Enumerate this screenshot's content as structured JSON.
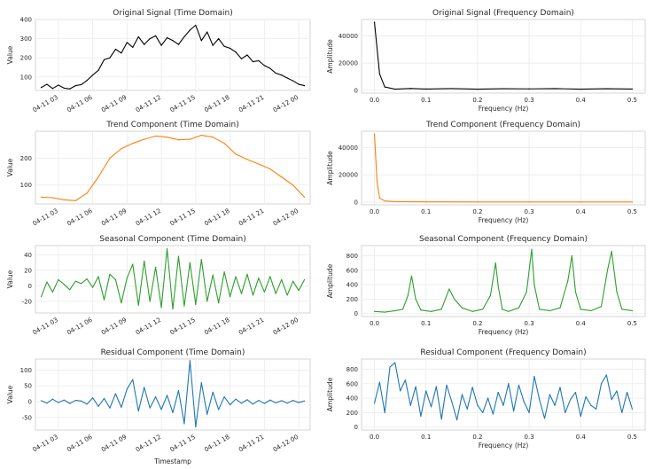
{
  "chart_data": [
    {
      "type": "line",
      "domain": "time",
      "title": "Original Signal (Time Domain)",
      "xlabel": "",
      "ylabel": "Value",
      "color": "#000000",
      "xlim": [
        "2024-04-11 01:00",
        "2024-04-12 01:00"
      ],
      "ylim": [
        30,
        400
      ],
      "x_ticks": [
        "04-11 03",
        "04-11 06",
        "04-11 09",
        "04-11 12",
        "04-11 15",
        "04-11 18",
        "04-11 21",
        "04-12 00"
      ],
      "y_ticks": [
        100,
        200,
        300,
        400
      ],
      "x": [
        "2024-04-11 01:30",
        "2024-04-11 02:00",
        "2024-04-11 02:30",
        "2024-04-11 03:00",
        "2024-04-11 03:30",
        "2024-04-11 04:00",
        "2024-04-11 04:30",
        "2024-04-11 05:00",
        "2024-04-11 05:30",
        "2024-04-11 06:00",
        "2024-04-11 06:30",
        "2024-04-11 07:00",
        "2024-04-11 07:30",
        "2024-04-11 08:00",
        "2024-04-11 08:30",
        "2024-04-11 09:00",
        "2024-04-11 09:30",
        "2024-04-11 10:00",
        "2024-04-11 10:30",
        "2024-04-11 11:00",
        "2024-04-11 11:30",
        "2024-04-11 12:00",
        "2024-04-11 12:30",
        "2024-04-11 13:00",
        "2024-04-11 13:30",
        "2024-04-11 14:00",
        "2024-04-11 14:30",
        "2024-04-11 15:00",
        "2024-04-11 15:30",
        "2024-04-11 16:00",
        "2024-04-11 16:30",
        "2024-04-11 17:00",
        "2024-04-11 17:30",
        "2024-04-11 18:00",
        "2024-04-11 18:30",
        "2024-04-11 19:00",
        "2024-04-11 19:30",
        "2024-04-11 20:00",
        "2024-04-11 20:30",
        "2024-04-11 21:00",
        "2024-04-11 21:30",
        "2024-04-11 22:00",
        "2024-04-11 22:30",
        "2024-04-11 23:00",
        "2024-04-11 23:30",
        "2024-04-12 00:00",
        "2024-04-12 00:30"
      ],
      "values": [
        45,
        62,
        40,
        58,
        42,
        38,
        55,
        60,
        82,
        110,
        135,
        190,
        200,
        245,
        225,
        280,
        255,
        310,
        270,
        300,
        315,
        265,
        305,
        290,
        270,
        310,
        345,
        370,
        290,
        335,
        265,
        300,
        260,
        250,
        230,
        195,
        215,
        180,
        185,
        160,
        145,
        120,
        110,
        95,
        80,
        62,
        55
      ]
    },
    {
      "type": "line",
      "domain": "frequency",
      "title": "Original Signal (Frequency Domain)",
      "xlabel": "Frequency (Hz)",
      "ylabel": "Amplitude",
      "color": "#000000",
      "xlim": [
        -0.025,
        0.525
      ],
      "ylim": [
        -2000,
        52000
      ],
      "x_ticks": [
        0.0,
        0.1,
        0.2,
        0.3,
        0.4,
        0.5
      ],
      "y_ticks": [
        0,
        20000,
        40000
      ],
      "x": [
        0.0,
        0.01,
        0.02,
        0.04,
        0.07,
        0.1,
        0.15,
        0.2,
        0.25,
        0.3,
        0.35,
        0.4,
        0.45,
        0.5
      ],
      "values": [
        50000,
        12000,
        2500,
        900,
        1400,
        1000,
        1300,
        900,
        1200,
        1100,
        1300,
        900,
        1200,
        1000
      ]
    },
    {
      "type": "line",
      "domain": "time",
      "title": "Trend Component (Time Domain)",
      "xlabel": "",
      "ylabel": "Value",
      "color": "#ff7f0e",
      "xlim": [
        "2024-04-11 01:00",
        "2024-04-12 01:00"
      ],
      "ylim": [
        30,
        300
      ],
      "x_ticks": [
        "04-11 03",
        "04-11 06",
        "04-11 09",
        "04-11 12",
        "04-11 15",
        "04-11 18",
        "04-11 21",
        "04-12 00"
      ],
      "y_ticks": [
        100,
        200
      ],
      "x": [
        "2024-04-11 01:30",
        "2024-04-11 02:30",
        "2024-04-11 03:30",
        "2024-04-11 04:30",
        "2024-04-11 05:30",
        "2024-04-11 06:30",
        "2024-04-11 07:30",
        "2024-04-11 08:30",
        "2024-04-11 09:30",
        "2024-04-11 10:30",
        "2024-04-11 11:30",
        "2024-04-11 12:30",
        "2024-04-11 13:30",
        "2024-04-11 14:30",
        "2024-04-11 15:30",
        "2024-04-11 16:30",
        "2024-04-11 17:30",
        "2024-04-11 18:30",
        "2024-04-11 19:30",
        "2024-04-11 20:30",
        "2024-04-11 21:30",
        "2024-04-11 22:30",
        "2024-04-11 23:30",
        "2024-04-12 00:30"
      ],
      "values": [
        55,
        53,
        45,
        42,
        70,
        130,
        200,
        235,
        255,
        270,
        282,
        278,
        268,
        270,
        285,
        278,
        255,
        215,
        195,
        178,
        160,
        130,
        100,
        55
      ]
    },
    {
      "type": "line",
      "domain": "frequency",
      "title": "Trend Component (Frequency Domain)",
      "xlabel": "Frequency (Hz)",
      "ylabel": "Amplitude",
      "color": "#ff7f0e",
      "xlim": [
        -0.025,
        0.525
      ],
      "ylim": [
        -2000,
        52000
      ],
      "x_ticks": [
        0.0,
        0.1,
        0.2,
        0.3,
        0.4,
        0.5
      ],
      "y_ticks": [
        0,
        20000,
        40000
      ],
      "x": [
        0.0,
        0.005,
        0.01,
        0.02,
        0.04,
        0.1,
        0.2,
        0.3,
        0.4,
        0.5
      ],
      "values": [
        50000,
        15000,
        3000,
        800,
        300,
        150,
        100,
        80,
        70,
        60
      ]
    },
    {
      "type": "line",
      "domain": "time",
      "title": "Seasonal Component (Time Domain)",
      "xlabel": "",
      "ylabel": "Value",
      "color": "#2ca02c",
      "xlim": [
        "2024-04-11 01:00",
        "2024-04-12 01:00"
      ],
      "ylim": [
        -35,
        52
      ],
      "x_ticks": [
        "04-11 03",
        "04-11 06",
        "04-11 09",
        "04-11 12",
        "04-11 15",
        "04-11 18",
        "04-11 21",
        "04-12 00"
      ],
      "y_ticks": [
        -20,
        0,
        20,
        40
      ],
      "x": [
        "2024-04-11 01:30",
        "2024-04-11 02:00",
        "2024-04-11 02:30",
        "2024-04-11 03:00",
        "2024-04-11 03:30",
        "2024-04-11 04:00",
        "2024-04-11 04:30",
        "2024-04-11 05:00",
        "2024-04-11 05:30",
        "2024-04-11 06:00",
        "2024-04-11 06:30",
        "2024-04-11 07:00",
        "2024-04-11 07:30",
        "2024-04-11 08:00",
        "2024-04-11 08:30",
        "2024-04-11 09:00",
        "2024-04-11 09:30",
        "2024-04-11 10:00",
        "2024-04-11 10:30",
        "2024-04-11 11:00",
        "2024-04-11 11:30",
        "2024-04-11 12:00",
        "2024-04-11 12:30",
        "2024-04-11 13:00",
        "2024-04-11 13:30",
        "2024-04-11 14:00",
        "2024-04-11 14:30",
        "2024-04-11 15:00",
        "2024-04-11 15:30",
        "2024-04-11 16:00",
        "2024-04-11 16:30",
        "2024-04-11 17:00",
        "2024-04-11 17:30",
        "2024-04-11 18:00",
        "2024-04-11 18:30",
        "2024-04-11 19:00",
        "2024-04-11 19:30",
        "2024-04-11 20:00",
        "2024-04-11 20:30",
        "2024-04-11 21:00",
        "2024-04-11 21:30",
        "2024-04-11 22:00",
        "2024-04-11 22:30",
        "2024-04-11 23:00",
        "2024-04-11 23:30",
        "2024-04-12 00:00",
        "2024-04-12 00:30"
      ],
      "values": [
        -14,
        5,
        -8,
        8,
        2,
        -5,
        6,
        3,
        9,
        -2,
        12,
        -18,
        15,
        8,
        -22,
        10,
        28,
        -25,
        32,
        -20,
        24,
        -28,
        48,
        -30,
        38,
        -26,
        30,
        -24,
        34,
        -20,
        14,
        -22,
        18,
        -14,
        12,
        -10,
        15,
        -12,
        10,
        -8,
        12,
        -10,
        8,
        -12,
        6,
        -6,
        8
      ]
    },
    {
      "type": "line",
      "domain": "frequency",
      "title": "Seasonal Component (Frequency Domain)",
      "xlabel": "Frequency (Hz)",
      "ylabel": "Amplitude",
      "color": "#2ca02c",
      "xlim": [
        -0.025,
        0.525
      ],
      "ylim": [
        -40,
        940
      ],
      "x_ticks": [
        0.0,
        0.1,
        0.2,
        0.3,
        0.4,
        0.5
      ],
      "y_ticks": [
        0,
        200,
        400,
        600,
        800
      ],
      "x": [
        0.0,
        0.02,
        0.04,
        0.055,
        0.065,
        0.072,
        0.08,
        0.09,
        0.11,
        0.13,
        0.145,
        0.155,
        0.17,
        0.19,
        0.21,
        0.225,
        0.235,
        0.24,
        0.248,
        0.26,
        0.28,
        0.295,
        0.305,
        0.31,
        0.32,
        0.34,
        0.36,
        0.375,
        0.383,
        0.39,
        0.4,
        0.42,
        0.44,
        0.452,
        0.46,
        0.47,
        0.48,
        0.5
      ],
      "values": [
        30,
        20,
        40,
        60,
        250,
        520,
        200,
        50,
        30,
        60,
        340,
        200,
        80,
        30,
        60,
        250,
        700,
        380,
        60,
        30,
        80,
        300,
        890,
        400,
        60,
        40,
        80,
        450,
        800,
        300,
        60,
        40,
        100,
        600,
        860,
        300,
        60,
        40
      ]
    },
    {
      "type": "line",
      "domain": "time",
      "title": "Residual Component (Time Domain)",
      "xlabel": "Timestamp",
      "ylabel": "Value",
      "color": "#1f77b4",
      "xlim": [
        "2024-04-11 01:00",
        "2024-04-12 01:00"
      ],
      "ylim": [
        -90,
        135
      ],
      "x_ticks": [
        "04-11 03",
        "04-11 06",
        "04-11 09",
        "04-11 12",
        "04-11 15",
        "04-11 18",
        "04-11 21",
        "04-12 00"
      ],
      "y_ticks": [
        -50,
        0,
        50,
        100
      ],
      "x": [
        "2024-04-11 01:30",
        "2024-04-11 02:00",
        "2024-04-11 02:30",
        "2024-04-11 03:00",
        "2024-04-11 03:30",
        "2024-04-11 04:00",
        "2024-04-11 04:30",
        "2024-04-11 05:00",
        "2024-04-11 05:30",
        "2024-04-11 06:00",
        "2024-04-11 06:30",
        "2024-04-11 07:00",
        "2024-04-11 07:30",
        "2024-04-11 08:00",
        "2024-04-11 08:30",
        "2024-04-11 09:00",
        "2024-04-11 09:30",
        "2024-04-11 10:00",
        "2024-04-11 10:30",
        "2024-04-11 11:00",
        "2024-04-11 11:30",
        "2024-04-11 12:00",
        "2024-04-11 12:30",
        "2024-04-11 13:00",
        "2024-04-11 13:30",
        "2024-04-11 14:00",
        "2024-04-11 14:30",
        "2024-04-11 15:00",
        "2024-04-11 15:30",
        "2024-04-11 16:00",
        "2024-04-11 16:30",
        "2024-04-11 17:00",
        "2024-04-11 17:30",
        "2024-04-11 18:00",
        "2024-04-11 18:30",
        "2024-04-11 19:00",
        "2024-04-11 19:30",
        "2024-04-11 20:00",
        "2024-04-11 20:30",
        "2024-04-11 21:00",
        "2024-04-11 21:30",
        "2024-04-11 22:00",
        "2024-04-11 22:30",
        "2024-04-11 23:00",
        "2024-04-11 23:30",
        "2024-04-12 00:00",
        "2024-04-12 00:30"
      ],
      "values": [
        3,
        -5,
        8,
        -3,
        5,
        -6,
        4,
        2,
        -8,
        12,
        -15,
        10,
        -20,
        25,
        -18,
        40,
        70,
        -30,
        45,
        -20,
        15,
        -25,
        20,
        -35,
        35,
        -70,
        130,
        -80,
        60,
        -40,
        30,
        -25,
        15,
        -10,
        8,
        -5,
        6,
        -8,
        4,
        -6,
        5,
        -4,
        3,
        -5,
        4,
        -3,
        2
      ]
    },
    {
      "type": "line",
      "domain": "frequency",
      "title": "Residual Component (Frequency Domain)",
      "xlabel": "Frequency (Hz)",
      "ylabel": "Amplitude",
      "color": "#1f77b4",
      "xlim": [
        -0.025,
        0.525
      ],
      "ylim": [
        -40,
        940
      ],
      "x_ticks": [
        0.0,
        0.1,
        0.2,
        0.3,
        0.4,
        0.5
      ],
      "y_ticks": [
        0,
        200,
        400,
        600,
        800
      ],
      "x": [
        0.0,
        0.01,
        0.02,
        0.03,
        0.04,
        0.05,
        0.06,
        0.07,
        0.08,
        0.09,
        0.1,
        0.11,
        0.12,
        0.13,
        0.14,
        0.15,
        0.16,
        0.17,
        0.18,
        0.19,
        0.2,
        0.21,
        0.22,
        0.23,
        0.24,
        0.25,
        0.26,
        0.27,
        0.28,
        0.29,
        0.3,
        0.31,
        0.32,
        0.33,
        0.34,
        0.35,
        0.36,
        0.37,
        0.38,
        0.39,
        0.4,
        0.41,
        0.42,
        0.43,
        0.44,
        0.45,
        0.46,
        0.47,
        0.48,
        0.49,
        0.5
      ],
      "values": [
        330,
        620,
        200,
        830,
        890,
        500,
        650,
        300,
        560,
        150,
        500,
        280,
        560,
        110,
        580,
        350,
        100,
        450,
        250,
        550,
        300,
        200,
        400,
        180,
        480,
        300,
        600,
        220,
        580,
        350,
        200,
        700,
        380,
        120,
        450,
        300,
        550,
        200,
        380,
        480,
        150,
        420,
        300,
        250,
        600,
        720,
        380,
        500,
        200,
        480,
        250
      ]
    }
  ]
}
